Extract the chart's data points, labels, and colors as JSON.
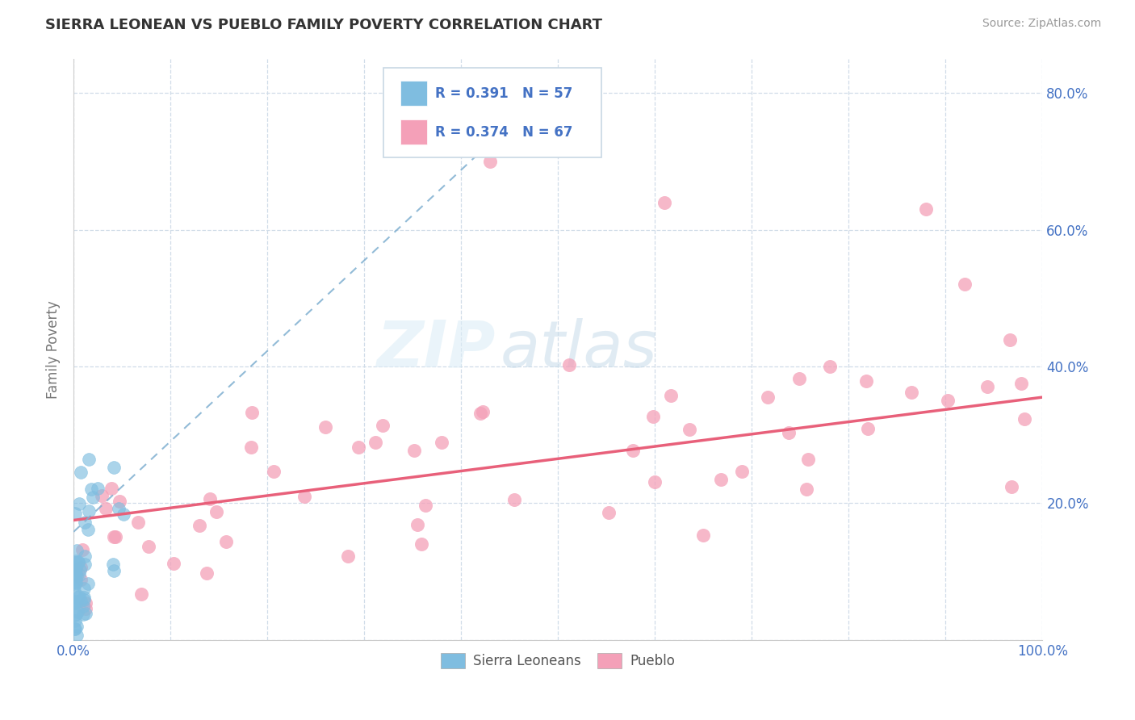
{
  "title": "SIERRA LEONEAN VS PUEBLO FAMILY POVERTY CORRELATION CHART",
  "source_text": "Source: ZipAtlas.com",
  "ylabel": "Family Poverty",
  "xlim": [
    0,
    1.0
  ],
  "ylim": [
    0,
    0.85
  ],
  "xticks": [
    0.0,
    0.1,
    0.2,
    0.3,
    0.4,
    0.5,
    0.6,
    0.7,
    0.8,
    0.9,
    1.0
  ],
  "xticklabels": [
    "0.0%",
    "",
    "",
    "",
    "",
    "",
    "",
    "",
    "",
    "",
    "100.0%"
  ],
  "yticks": [
    0.0,
    0.2,
    0.4,
    0.6,
    0.8
  ],
  "yticklabels_right": [
    "",
    "20.0%",
    "40.0%",
    "60.0%",
    "80.0%"
  ],
  "legend_R1": "R = 0.391",
  "legend_N1": "N = 57",
  "legend_R2": "R = 0.374",
  "legend_N2": "N = 67",
  "sierra_color": "#7fbde0",
  "pueblo_color": "#f4a0b8",
  "sierra_trend_color": "#7fafd0",
  "pueblo_trend_color": "#e8607a",
  "watermark_zip": "ZIP",
  "watermark_atlas": "atlas",
  "background_color": "#ffffff",
  "grid_color": "#d0dce8",
  "tick_color": "#4472c4",
  "title_color": "#333333",
  "source_color": "#999999",
  "ylabel_color": "#777777",
  "legend_text_color": "#4472c4",
  "pueblo_trend_x0": 0.0,
  "pueblo_trend_x1": 1.0,
  "pueblo_trend_y0": 0.175,
  "pueblo_trend_y1": 0.355,
  "sierra_trend_x0": 0.0,
  "sierra_trend_x1": 0.5,
  "sierra_trend_y0": 0.158,
  "sierra_trend_y1": 0.82
}
